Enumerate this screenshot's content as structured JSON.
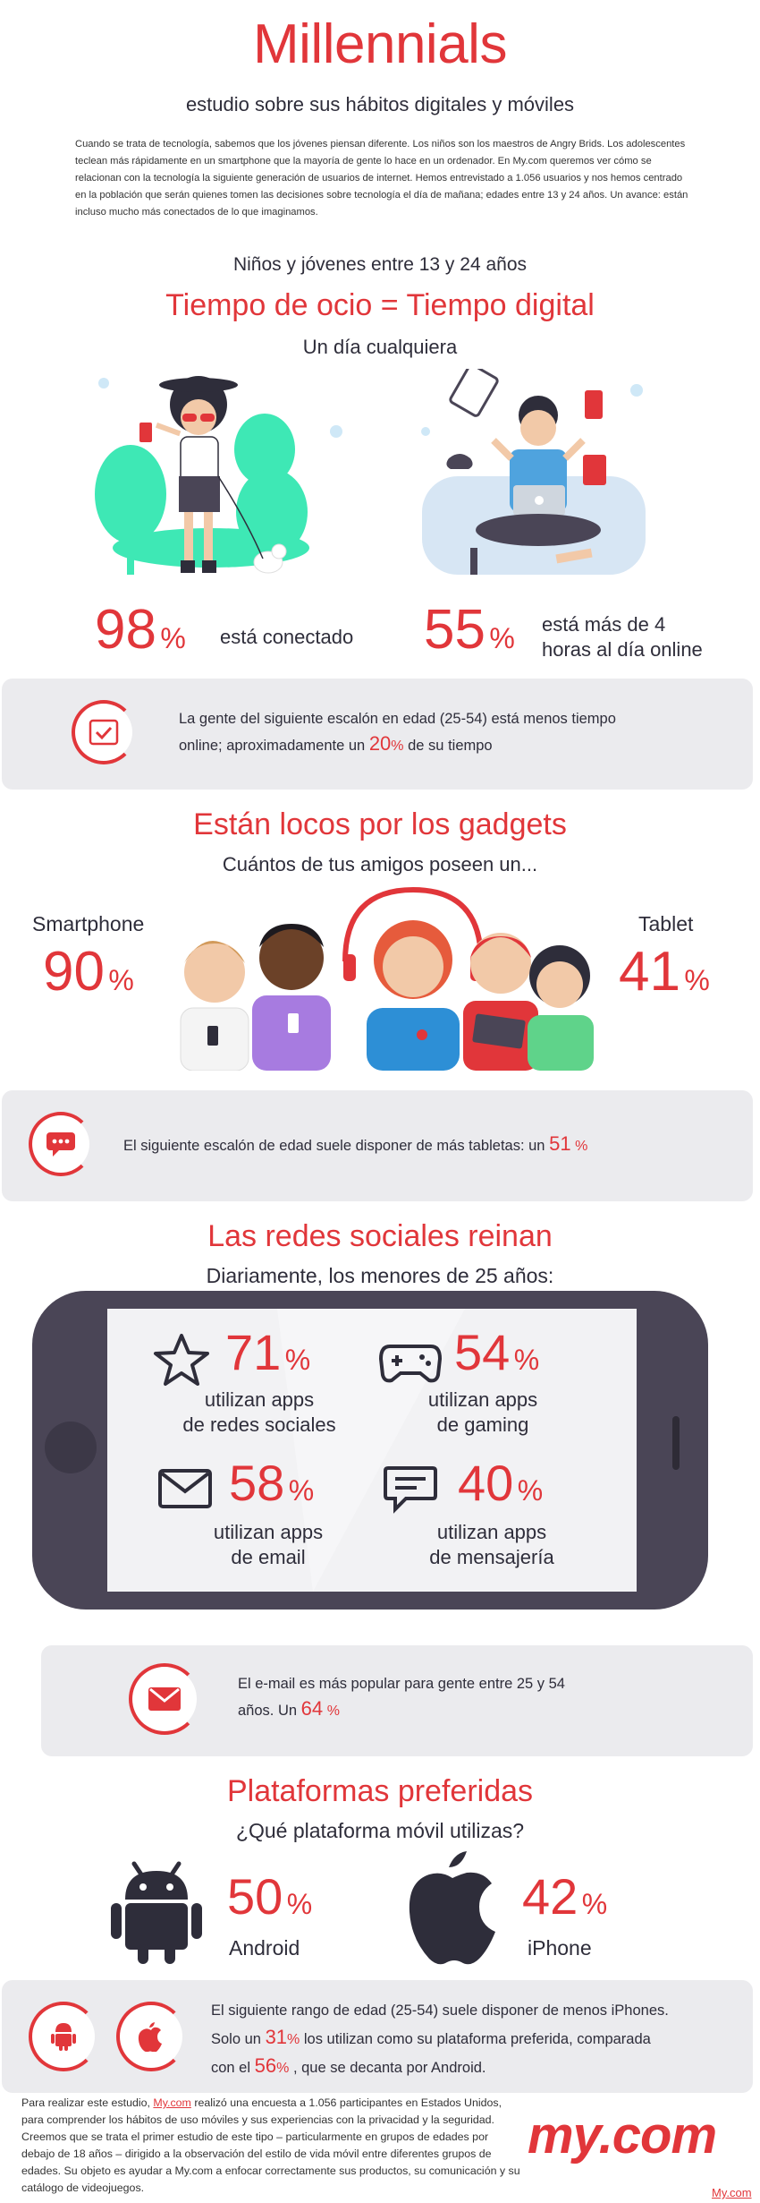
{
  "header": {
    "title": "Millennials",
    "subtitle": "estudio sobre sus hábitos digitales y móviles",
    "intro": "Cuando se trata de tecnología, sabemos que los jóvenes piensan diferente. Los niños son los maestros de Angry Brids. Los adolescentes teclean más rápidamente en un smartphone que la mayoría de gente lo hace en un ordenador. En My.com queremos ver cómo se relacionan con la tecnología la siguiente generación de usuarios de internet. Hemos entrevistado a 1.056 usuarios y nos hemos centrado en  la población que serán quienes tomen las decisiones sobre tecnología el día de mañana; edades entre 13 y 24 años. Un avance: están incluso mucho más conectados de lo que imaginamos."
  },
  "section1": {
    "kicker": "Niños y jóvenes entre 13 y 24 años",
    "title": "Tiempo de ocio = Tiempo digital",
    "subtitle": "Un día cualquiera",
    "stat1_value": "98",
    "stat1_pct": "%",
    "stat1_label": "está conectado",
    "stat2_value": "55",
    "stat2_pct": "%",
    "stat2_label_line1": "está más de 4",
    "stat2_label_line2": "horas al día online",
    "panel_line1": "La gente del siguiente escalón en edad (25-54) está menos tiempo",
    "panel_line2_a": "online; aproximadamente un",
    "panel_value": "20",
    "panel_pct": "%",
    "panel_line2_b": "de su tiempo"
  },
  "section2": {
    "title": "Están locos por los gadgets",
    "subtitle": "Cuántos de tus amigos poseen un...",
    "left_label": "Smartphone",
    "left_value": "90",
    "left_pct": "%",
    "right_label": "Tablet",
    "right_value": "41",
    "right_pct": "%",
    "panel_text": "El siguiente escalón de edad suele disponer de más tabletas: un",
    "panel_value": "51",
    "panel_pct": "%"
  },
  "section3": {
    "title": "Las redes sociales reinan",
    "subtitle": "Diariamente, los menores de 25 años:",
    "stats": [
      {
        "value": "71",
        "pct": "%",
        "line1": "utilizan apps",
        "line2": "de redes sociales",
        "icon": "star-icon"
      },
      {
        "value": "54",
        "pct": "%",
        "line1": "utilizan apps",
        "line2": "de gaming",
        "icon": "gamepad-icon"
      },
      {
        "value": "58",
        "pct": "%",
        "line1": "utilizan apps",
        "line2": "de email",
        "icon": "envelope-icon"
      },
      {
        "value": "40",
        "pct": "%",
        "line1": "utilizan apps",
        "line2": "de mensajería",
        "icon": "chat-icon"
      }
    ],
    "panel_line1": "El e-mail es más popular para gente entre 25 y 54",
    "panel_line2": "años. Un",
    "panel_value": "64",
    "panel_pct": "%"
  },
  "section4": {
    "title": "Plataformas preferidas",
    "subtitle": "¿Qué plataforma móvil utilizas?",
    "android_value": "50",
    "android_pct": "%",
    "android_label": "Android",
    "iphone_value": "42",
    "iphone_pct": "%",
    "iphone_label": "iPhone",
    "panel_line1": "El siguiente rango de edad (25-54) suele disponer de menos iPhones.",
    "panel_line2_a": "Solo un",
    "panel_value1": "31",
    "panel_pct1": "%",
    "panel_line2_b": "los utilizan como su plataforma preferida, comparada",
    "panel_line3_a": "con el",
    "panel_value2": "56",
    "panel_pct2": "%",
    "panel_line3_b": ", que se decanta por Android."
  },
  "footer": {
    "note_a": "Para realizar este estudio,",
    "note_link": "My.com",
    "note_b": "realizó una encuesta a 1.056 participantes en Estados Unidos, para comprender los hábitos de uso móviles y sus experiencias con la privacidad y la seguridad. Creemos que se trata el primer estudio de este tipo – particularmente en grupos de edades por debajo de 18 años – dirigido a la observación del estilo de vida móvil entre diferentes grupos de edades. Su objeto es ayudar a My.com a enfocar correctamente sus productos, su comunicación y su catálogo de videojuegos.",
    "logo": "my.com",
    "logo_link": "My.com"
  },
  "colors": {
    "accent": "#e1363a",
    "dark": "#2e2d3a",
    "panel": "#ebebee",
    "phone": "#4a4556",
    "mint": "#3ee8b5"
  }
}
